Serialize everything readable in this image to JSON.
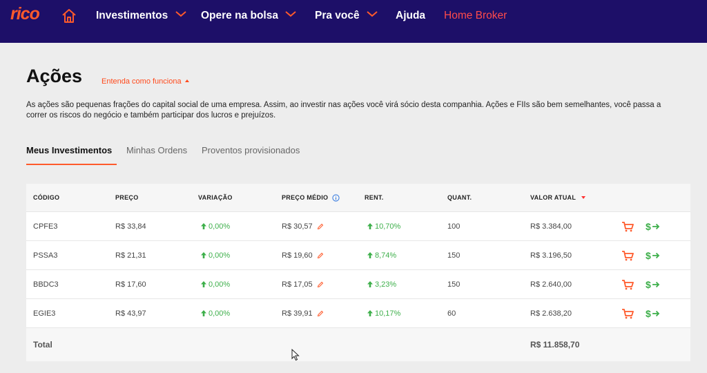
{
  "nav": {
    "logo": "rico",
    "items": [
      {
        "label": "Investimentos"
      },
      {
        "label": "Opere na bolsa"
      },
      {
        "label": "Pra você"
      },
      {
        "label": "Ajuda"
      },
      {
        "label": "Home Broker"
      }
    ]
  },
  "page": {
    "title": "Ações",
    "how_it_works": "Entenda como funciona",
    "description": "As ações são pequenas frações do capital social de uma empresa. Assim, ao investir nas ações você virá sócio desta companhia. Ações e FIIs são bem semelhantes, você passa a correr os riscos do negócio e também participar dos lucros e prejuízos."
  },
  "tabs": [
    {
      "label": "Meus Investimentos",
      "active": true
    },
    {
      "label": "Minhas Ordens"
    },
    {
      "label": "Proventos provisionados"
    }
  ],
  "table": {
    "headers": {
      "codigo": "CÓDIGO",
      "preco": "PREÇO",
      "variacao": "VARIAÇÃO",
      "preco_medio": "PREÇO MÉDIO",
      "rent": "RENT.",
      "quant": "QUANT.",
      "valor_atual": "VALOR ATUAL"
    },
    "rows": [
      {
        "codigo": "CPFE3",
        "preco": "R$ 33,84",
        "variacao": "0,00%",
        "preco_medio": "R$ 30,57",
        "rent": "10,70%",
        "quant": "100",
        "valor_atual": "R$ 3.384,00"
      },
      {
        "codigo": "PSSA3",
        "preco": "R$ 21,31",
        "variacao": "0,00%",
        "preco_medio": "R$ 19,60",
        "rent": "8,74%",
        "quant": "150",
        "valor_atual": "R$ 3.196,50"
      },
      {
        "codigo": "BBDC3",
        "preco": "R$ 17,60",
        "variacao": "0,00%",
        "preco_medio": "R$ 17,05",
        "rent": "3,23%",
        "quant": "150",
        "valor_atual": "R$ 2.640,00"
      },
      {
        "codigo": "EGIE3",
        "preco": "R$ 43,97",
        "variacao": "0,00%",
        "preco_medio": "R$ 39,91",
        "rent": "10,17%",
        "quant": "60",
        "valor_atual": "R$ 2.638,20"
      }
    ],
    "total_label": "Total",
    "total_value": "R$ 11.858,70"
  },
  "colors": {
    "nav_bg": "#1d0f68",
    "accent": "#ff5a2b",
    "positive": "#3daf4a",
    "home_broker": "#ff4b4b"
  },
  "icons": {
    "buy": "cart-icon",
    "sell": "dollar-arrow-icon",
    "edit": "pencil-icon",
    "info": "info-icon",
    "home": "home-icon"
  }
}
